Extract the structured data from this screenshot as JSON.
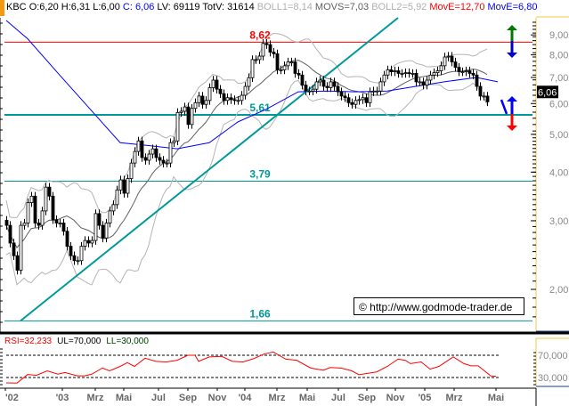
{
  "header": {
    "symbol": "KBC",
    "ohlc": "O:6,20 H:6,31 L:6,00",
    "close": "C: 6,06",
    "volume": "LV: 69119 TotV: 31614",
    "boll1": "BOLL1=8,14",
    "movs": "MOVS=7,03",
    "boll2": "BOLL2=5,92",
    "move_red": "MovE=12,70",
    "move_blue": "MovE=6,80"
  },
  "copyright": "© http://www.godmode-trader.de",
  "colors": {
    "accent": "#f39a12",
    "resistance": "#ff0000",
    "support": "#009999",
    "ma_long": "#0000ff",
    "bands": "#b4b4b4",
    "ma_mid": "#606060",
    "rsi": "#ff0000",
    "axis_line": "#f5c542"
  },
  "chart_data": [
    {
      "type": "candlestick",
      "yscale": "log",
      "ylim": [
        1.6,
        10.2
      ],
      "y_ticks": [
        {
          "v": 2,
          "label": "2,00"
        },
        {
          "v": 3,
          "label": "3,00"
        },
        {
          "v": 4,
          "label": "4,00"
        },
        {
          "v": 5,
          "label": "5,00"
        },
        {
          "v": 6,
          "label": "6,00"
        },
        {
          "v": 7,
          "label": "7,00"
        },
        {
          "v": 8,
          "label": "8,00"
        },
        {
          "v": 9,
          "label": "9,00"
        }
      ],
      "last_price_label": "6,06",
      "x_ticks": [
        "'02",
        "'03",
        "Mrz",
        "Mai",
        "Jul",
        "Sep",
        "Nov",
        "'04",
        "Mrz",
        "Mai",
        "Jul",
        "Sep",
        "Nov",
        "'05",
        "Mrz",
        "Mai"
      ],
      "closes": [
        2.92,
        2.63,
        2.44,
        2.24,
        2.92,
        2.96,
        3.34,
        3.47,
        2.96,
        2.92,
        3.18,
        3.66,
        3.47,
        3.02,
        2.96,
        2.96,
        2.82,
        2.58,
        2.44,
        2.37,
        2.37,
        2.58,
        2.67,
        2.63,
        2.67,
        3.13,
        2.92,
        2.71,
        2.96,
        3.18,
        3.3,
        3.6,
        3.82,
        3.53,
        3.85,
        4.22,
        4.52,
        4.81,
        4.36,
        4.29,
        4.45,
        4.59,
        4.36,
        4.29,
        4.22,
        4.22,
        4.76,
        4.81,
        5.69,
        5.73,
        5.88,
        5.3,
        5.83,
        6.03,
        6.27,
        5.97,
        6.11,
        6.59,
        6.89,
        6.53,
        6.36,
        6.11,
        6.21,
        6.14,
        6.11,
        6.11,
        6.3,
        6.64,
        6.99,
        7.78,
        7.78,
        7.94,
        8.56,
        8.5,
        8.13,
        8.05,
        7.32,
        7.32,
        7.5,
        7.67,
        7.67,
        7.17,
        7.1,
        6.69,
        6.46,
        6.46,
        6.53,
        6.82,
        6.89,
        6.64,
        6.59,
        6.82,
        6.64,
        6.43,
        6.27,
        6.21,
        6.03,
        5.97,
        6.11,
        6.14,
        6.21,
        6.03,
        6.43,
        6.46,
        6.46,
        6.82,
        7.1,
        7.32,
        7.24,
        7.28,
        7.17,
        7.17,
        7.2,
        7.17,
        7.17,
        6.82,
        6.82,
        6.69,
        6.89,
        7.1,
        7.2,
        7.28,
        7.5,
        7.9,
        7.94,
        7.67,
        7.43,
        7.24,
        7.24,
        7.28,
        7.17,
        7.1,
        6.64,
        6.27,
        6.27,
        6.06
      ],
      "ma_long": [
        [
          0,
          9.8
        ],
        [
          6,
          8.8
        ],
        [
          15,
          7.1
        ],
        [
          23,
          5.88
        ],
        [
          32,
          4.76
        ],
        [
          40,
          4.68
        ],
        [
          48,
          4.59
        ],
        [
          57,
          4.76
        ],
        [
          65,
          5.38
        ],
        [
          73,
          5.8
        ],
        [
          82,
          6.43
        ],
        [
          90,
          6.46
        ],
        [
          98,
          6.43
        ],
        [
          107,
          6.46
        ],
        [
          115,
          6.64
        ],
        [
          123,
          6.82
        ],
        [
          132,
          7.0
        ],
        [
          138,
          6.82
        ]
      ],
      "levels": [
        {
          "value": 8.62,
          "label": "8,62",
          "color": "#ff0000"
        },
        {
          "value": 5.61,
          "label": "5,61",
          "color": "#009999",
          "thick": true
        },
        {
          "value": 3.79,
          "label": "3,79",
          "color": "#009999"
        },
        {
          "value": 1.66,
          "label": "1,66",
          "color": "#009999"
        }
      ],
      "trendline": [
        [
          4,
          1.66
        ],
        [
          110,
          9.96
        ]
      ]
    },
    {
      "type": "line",
      "title": "RSI=32,233",
      "ul_label": "UL=70,000",
      "ll_label": "LL=30,000",
      "ylim": [
        10,
        90
      ],
      "y_ticks": [
        {
          "v": 70,
          "label": "70,000"
        },
        {
          "v": 30,
          "label": "30,000"
        }
      ],
      "upper": 70,
      "lower": 30,
      "values": [
        [
          0,
          20.4
        ],
        [
          3,
          20
        ],
        [
          6,
          35.3
        ],
        [
          8.5,
          34
        ],
        [
          11.5,
          42
        ],
        [
          14.5,
          36
        ],
        [
          16.5,
          39
        ],
        [
          20,
          33
        ],
        [
          22,
          33
        ],
        [
          24,
          36
        ],
        [
          27,
          47
        ],
        [
          29,
          42
        ],
        [
          32,
          50
        ],
        [
          34,
          56.7
        ],
        [
          36,
          50
        ],
        [
          39,
          64.7
        ],
        [
          42,
          59
        ],
        [
          45,
          58
        ],
        [
          48,
          61
        ],
        [
          51,
          70
        ],
        [
          53,
          70
        ],
        [
          54,
          59
        ],
        [
          57,
          67
        ],
        [
          60.5,
          68
        ],
        [
          63.5,
          59
        ],
        [
          66.5,
          58
        ],
        [
          69.5,
          64
        ],
        [
          72.5,
          72.5
        ],
        [
          75,
          75.7
        ],
        [
          78.5,
          63
        ],
        [
          81.5,
          61
        ],
        [
          85.5,
          47
        ],
        [
          89,
          43
        ],
        [
          91,
          48
        ],
        [
          94,
          47
        ],
        [
          97,
          42
        ],
        [
          99,
          35
        ],
        [
          104,
          40
        ],
        [
          107,
          50
        ],
        [
          110,
          63
        ],
        [
          112,
          61
        ],
        [
          113.5,
          55
        ],
        [
          116.5,
          58
        ],
        [
          119,
          45
        ],
        [
          121.5,
          50
        ],
        [
          125.5,
          67
        ],
        [
          128.5,
          55
        ],
        [
          130.5,
          51
        ],
        [
          132.5,
          51
        ],
        [
          136,
          33
        ],
        [
          137.5,
          32.2
        ]
      ]
    }
  ]
}
